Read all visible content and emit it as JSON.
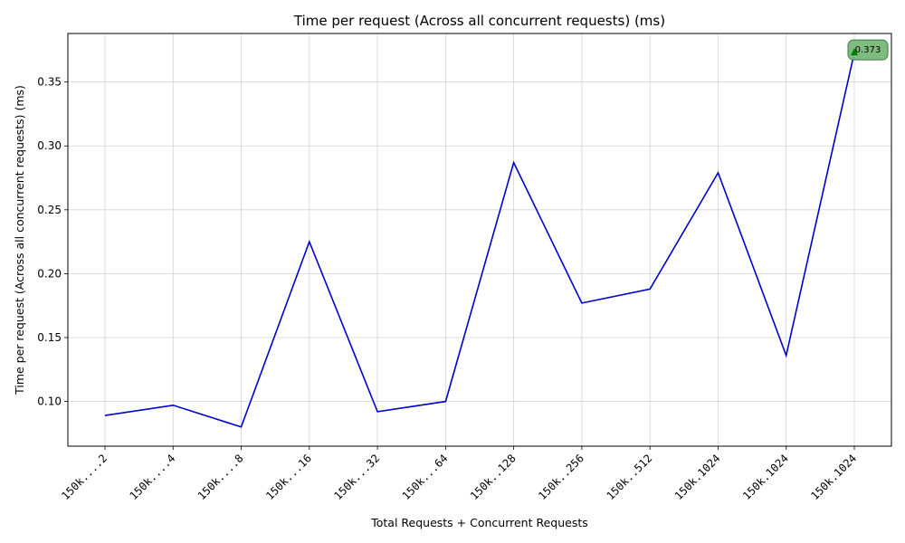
{
  "chart_data": {
    "type": "line",
    "title": "Time per request (Across all concurrent requests) (ms)",
    "xlabel": "Total Requests + Concurrent Requests",
    "ylabel": "Time per request (Across all concurrent requests) (ms)",
    "categories": [
      "150k....2",
      "150k....4",
      "150k....8",
      "150k...16",
      "150k...32",
      "150k...64",
      "150k..128",
      "150k..256",
      "150k..512",
      "150k.1024",
      "150k.1024",
      "150k.1024"
    ],
    "series": [
      {
        "values": [
          0.089,
          0.097,
          0.08,
          0.225,
          0.092,
          0.1,
          0.287,
          0.177,
          0.188,
          0.279,
          0.136,
          0.373
        ],
        "color": "#0000cc"
      }
    ],
    "ylim": [
      0.065,
      0.388
    ],
    "yticks": [
      0.1,
      0.15,
      0.2,
      0.25,
      0.3,
      0.35
    ],
    "ytick_labels": [
      "0.10",
      "0.15",
      "0.20",
      "0.25",
      "0.30",
      "0.35"
    ],
    "grid": true,
    "annotation": {
      "index": 11,
      "label": "0.373",
      "marker_color": "#008000",
      "box_color": "#78b878"
    }
  }
}
